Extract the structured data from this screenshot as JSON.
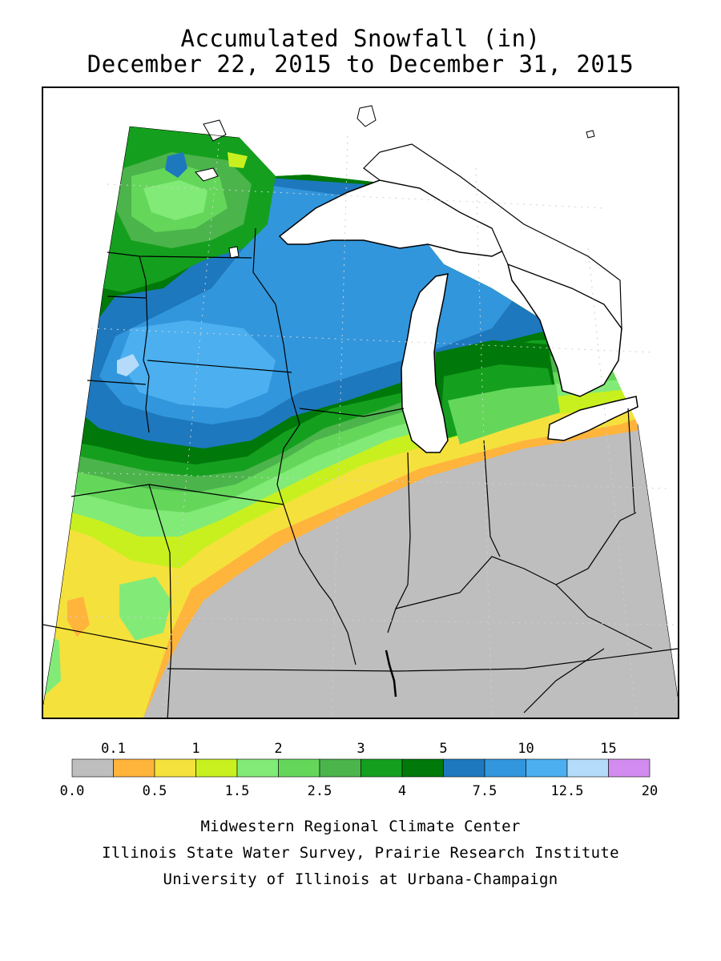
{
  "title": {
    "line1": "Accumulated Snowfall (in)",
    "line2": "December 22, 2015 to December 31, 2015"
  },
  "legend": {
    "bins": [
      {
        "color": "#bebebe"
      },
      {
        "color": "#ffb43c"
      },
      {
        "color": "#f5e13c"
      },
      {
        "color": "#c8f01e"
      },
      {
        "color": "#82eb78"
      },
      {
        "color": "#64d75a"
      },
      {
        "color": "#4bb44b"
      },
      {
        "color": "#14a01e"
      },
      {
        "color": "#00780a"
      },
      {
        "color": "#1e78be"
      },
      {
        "color": "#3296dc"
      },
      {
        "color": "#4baff0"
      },
      {
        "color": "#b4dcfa"
      },
      {
        "color": "#d28cf0"
      }
    ],
    "top_labels": [
      "0.1",
      "1",
      "2",
      "3",
      "5",
      "10",
      "15"
    ],
    "bottom_labels": [
      "0.0",
      "0.5",
      "1.5",
      "2.5",
      "4",
      "7.5",
      "12.5",
      "20"
    ]
  },
  "credits": {
    "line1": "Midwestern Regional Climate Center",
    "line2": "Illinois State Water Survey, Prairie Research Institute",
    "line3": "University of Illinois at Urbana-Champaign"
  },
  "map": {
    "lake_color": "#ffffff",
    "boundary_color": "#000000"
  }
}
